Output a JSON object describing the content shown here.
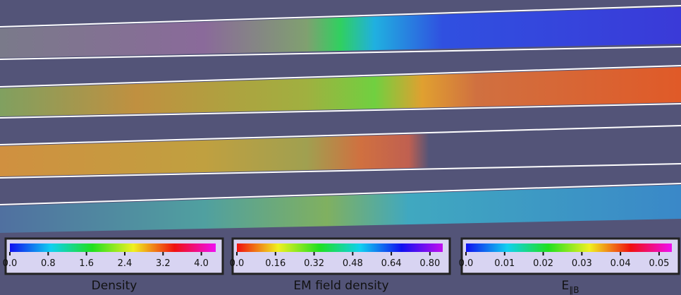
{
  "colorbars": [
    {
      "title": "Density",
      "lim": [
        0,
        4.3
      ],
      "colors": [
        "#1010f0",
        "#10d0f0",
        "#20e020",
        "#f0f020",
        "#f01010",
        "#f010f0"
      ],
      "ticks": [
        {
          "value": 0,
          "label": "0.0"
        },
        0.8,
        1.6,
        2.4,
        3.2,
        {
          "value": 4,
          "label": "4.0"
        }
      ]
    },
    {
      "title": "EM field density",
      "lim": [
        0,
        0.853
      ],
      "colors": [
        "#f01010",
        "#f0f020",
        "#20e020",
        "#10d0f0",
        "#1010f0",
        "#c010f0"
      ],
      "ticks": [
        {
          "value": 0,
          "label": "0.0"
        },
        0.16,
        0.32,
        0.48,
        0.64,
        {
          "value": 0.8,
          "label": "0.80"
        }
      ]
    },
    {
      "title": "E",
      "title_subscript": "∥B",
      "lim": [
        0,
        0.0533
      ],
      "colors": [
        "#1010f0",
        "#10d0f0",
        "#20e020",
        "#f0f020",
        "#f01010",
        "#f010f0"
      ],
      "ticks": [
        {
          "value": 0,
          "label": "0.0"
        },
        0.01,
        0.02,
        0.03,
        0.04,
        0.05
      ]
    }
  ]
}
